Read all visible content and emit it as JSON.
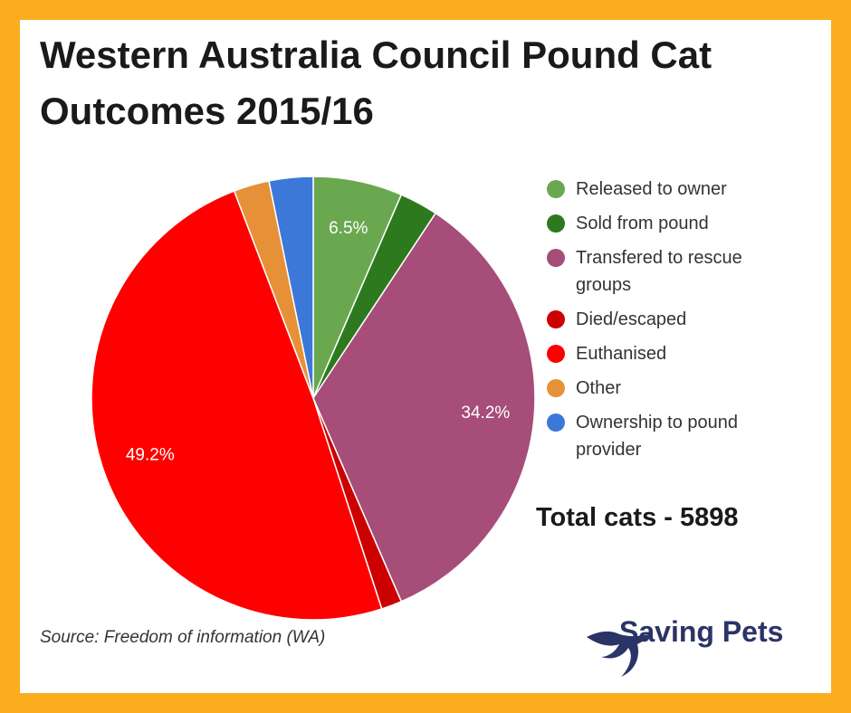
{
  "chart_data": {
    "type": "pie",
    "title": "Western Australia Council Pound Cat Outcomes 2015/16",
    "categories": [
      "Released to owner",
      "Sold from pound",
      "Transfered to rescue groups",
      "Died/escaped",
      "Euthanised",
      "Other",
      "Ownership to pound provider"
    ],
    "values": [
      6.5,
      2.8,
      34.2,
      1.5,
      49.2,
      2.6,
      3.2
    ],
    "value_labels": [
      "6.5%",
      null,
      "34.2%",
      null,
      "49.2%",
      null,
      null
    ],
    "colors": [
      "#6aa84f",
      "#2d7a1e",
      "#a64d79",
      "#cc0000",
      "#ff0000",
      "#e69138",
      "#3c78d8"
    ],
    "legend": "right",
    "annotation": "Total cats - 5898",
    "source": "Source: Freedom of information (WA)",
    "brand": "Saving Pets"
  }
}
